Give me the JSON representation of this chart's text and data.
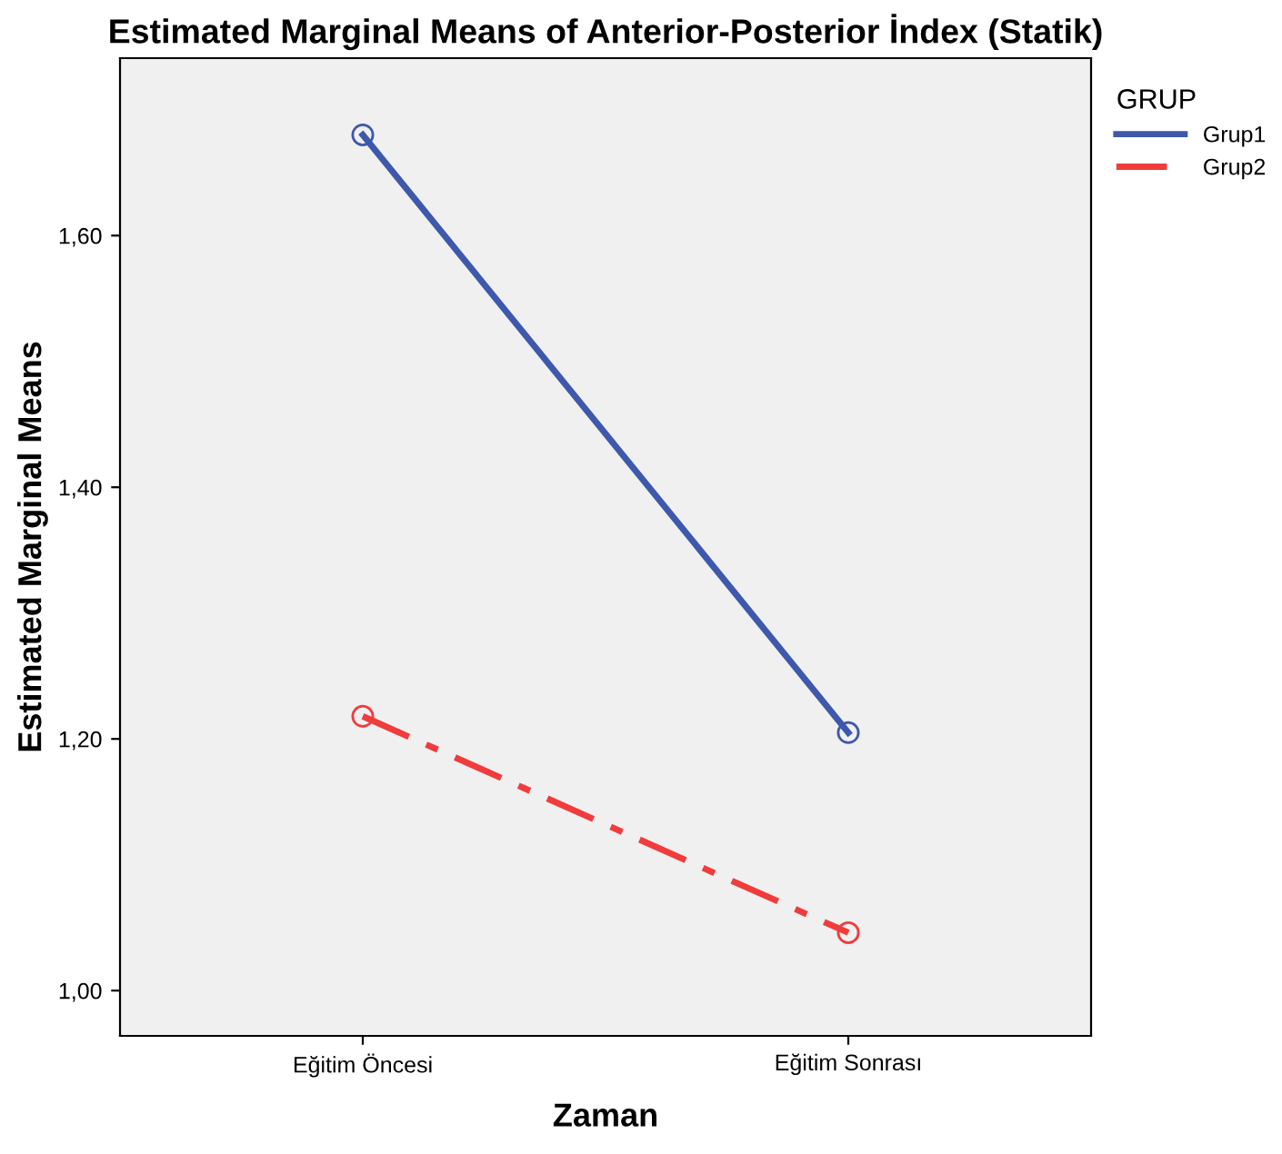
{
  "chart_data": {
    "type": "line",
    "title": "Estimated Marginal Means of Anterior-Posterior İndex (Statik)",
    "xlabel": "Zaman",
    "ylabel": "Estimated Marginal Means",
    "legend_title": "GRUP",
    "categories": [
      "Eğitim Öncesi",
      "Eğitim Sonrası"
    ],
    "series": [
      {
        "name": "Grup1",
        "color": "#3e58ac",
        "values": [
          1.68,
          1.205
        ],
        "line_style": "solid"
      },
      {
        "name": "Grup2",
        "color": "#f03c3c",
        "values": [
          1.218,
          1.046
        ],
        "line_style": "dashdot"
      }
    ],
    "ylim": [
      0.964,
      1.741
    ],
    "yticks": [
      {
        "value": 1.0,
        "label": "1,00"
      },
      {
        "value": 1.2,
        "label": "1,20"
      },
      {
        "value": 1.4,
        "label": "1,40"
      },
      {
        "value": 1.6,
        "label": "1,60"
      }
    ],
    "marker": "circle",
    "legend": "top right",
    "grid": false
  }
}
